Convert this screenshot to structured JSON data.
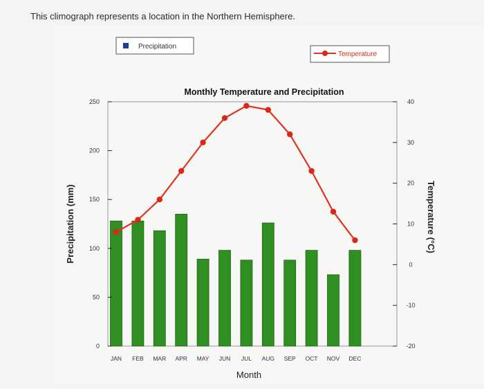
{
  "question": "This climograph represents a location in the Northern Hemisphere.",
  "colors": {
    "precip_bar": "#2f8f22",
    "precip_bar_stroke": "#1f5f18",
    "temp_line": "#e0331f",
    "temp_point": "#d9281a",
    "axis": "#222222"
  },
  "chart_data": {
    "type": "bar",
    "title": "Monthly Temperature and Precipitation",
    "xlabel": "Month",
    "ylabel": "Precipitation (mm)",
    "y2label": "Temperature (°C)",
    "categories": [
      "JAN",
      "FEB",
      "MAR",
      "APR",
      "MAY",
      "JUN",
      "JUL",
      "AUG",
      "SEP",
      "OCT",
      "NOV",
      "DEC"
    ],
    "ylim": [
      0,
      250
    ],
    "y_ticks": [
      0,
      50,
      100,
      150,
      200,
      250
    ],
    "y2lim": [
      -20,
      40
    ],
    "y2_ticks": [
      -20,
      -10,
      0,
      10,
      20,
      30,
      40
    ],
    "series": [
      {
        "name": "Precipitation",
        "type": "bar",
        "axis": "left",
        "values": [
          128,
          128,
          118,
          135,
          89,
          98,
          88,
          126,
          88,
          98,
          73,
          98
        ]
      },
      {
        "name": "Temperature",
        "type": "line",
        "axis": "right",
        "values": [
          8,
          11,
          16,
          23,
          30,
          36,
          39,
          38,
          32,
          23,
          13,
          6
        ]
      }
    ],
    "legend": {
      "entries": [
        "Precipitation",
        "Temperature"
      ],
      "placement": "top"
    },
    "grid": false
  }
}
